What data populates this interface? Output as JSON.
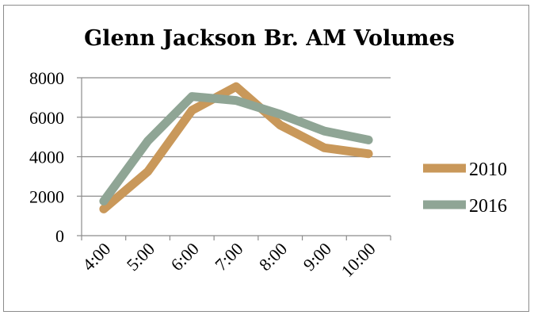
{
  "chart_data": {
    "type": "line",
    "title": "Glenn Jackson Br. AM Volumes",
    "xlabel": "",
    "ylabel": "",
    "categories": [
      "4:00",
      "5:00",
      "6:00",
      "7:00",
      "8:00",
      "9:00",
      "10:00"
    ],
    "ylim": [
      0,
      8000
    ],
    "yticks": [
      "0",
      "2000",
      "4000",
      "6000",
      "8000"
    ],
    "grid": true,
    "legend_position": "right",
    "series": [
      {
        "name": "2010",
        "color": "#c9985a",
        "values": [
          1350,
          3250,
          6350,
          7550,
          5600,
          4450,
          4150
        ]
      },
      {
        "name": "2016",
        "color": "#8fa595",
        "values": [
          1750,
          4800,
          7050,
          6850,
          6150,
          5300,
          4850
        ]
      }
    ]
  }
}
